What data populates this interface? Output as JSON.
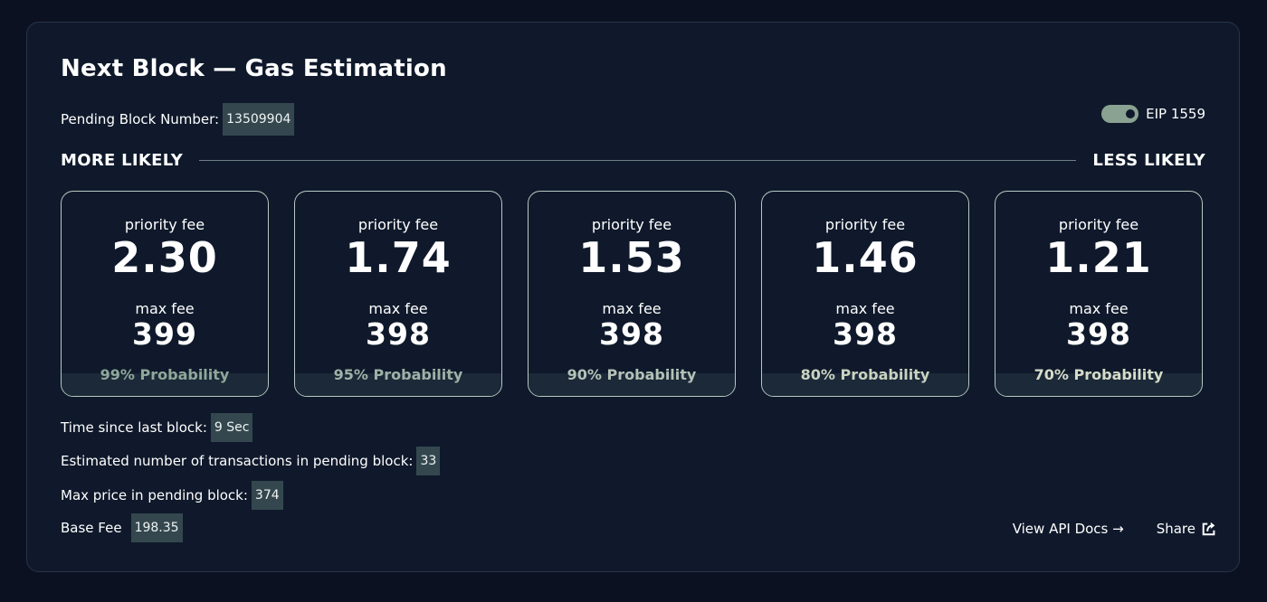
{
  "header": {
    "title": "Next Block — Gas Estimation",
    "pending_label": "Pending Block Number:",
    "pending_value": "13509904",
    "eip_label": "EIP 1559"
  },
  "likelihood": {
    "left": "MORE LIKELY",
    "right": "LESS LIKELY"
  },
  "cards": [
    {
      "priority_label": "priority fee",
      "priority": "2.30",
      "max_label": "max fee",
      "max": "399",
      "probability": "99% Probability",
      "prob_color": "#8fa89a"
    },
    {
      "priority_label": "priority fee",
      "priority": "1.74",
      "max_label": "max fee",
      "max": "398",
      "probability": "95% Probability",
      "prob_color": "#9fb2a6"
    },
    {
      "priority_label": "priority fee",
      "priority": "1.53",
      "max_label": "max fee",
      "max": "398",
      "probability": "90% Probability",
      "prob_color": "#b4c2b7"
    },
    {
      "priority_label": "priority fee",
      "priority": "1.46",
      "max_label": "max fee",
      "max": "398",
      "probability": "80% Probability",
      "prob_color": "#c9d3c1"
    },
    {
      "priority_label": "priority fee",
      "priority": "1.21",
      "max_label": "max fee",
      "max": "398",
      "probability": "70% Probability",
      "prob_color": "#d6dcc8"
    }
  ],
  "stats": {
    "time_label": "Time since last block:",
    "time_value": "9 Sec",
    "tx_label": "Estimated number of transactions in pending block:",
    "tx_value": "33",
    "maxprice_label": "Max price in pending block:",
    "maxprice_value": "374",
    "basefee_label": "Base Fee",
    "basefee_value": "198.35"
  },
  "links": {
    "api_docs": "View API Docs →",
    "share": "Share"
  },
  "icons": {
    "toggle": "toggle-icon",
    "share": "share-icon"
  },
  "colors": {
    "background": "#0b1120",
    "panel": "#0f192b",
    "chip": "#34474f",
    "toggle": "#8aa292",
    "card_border": "#b7c9c2"
  }
}
